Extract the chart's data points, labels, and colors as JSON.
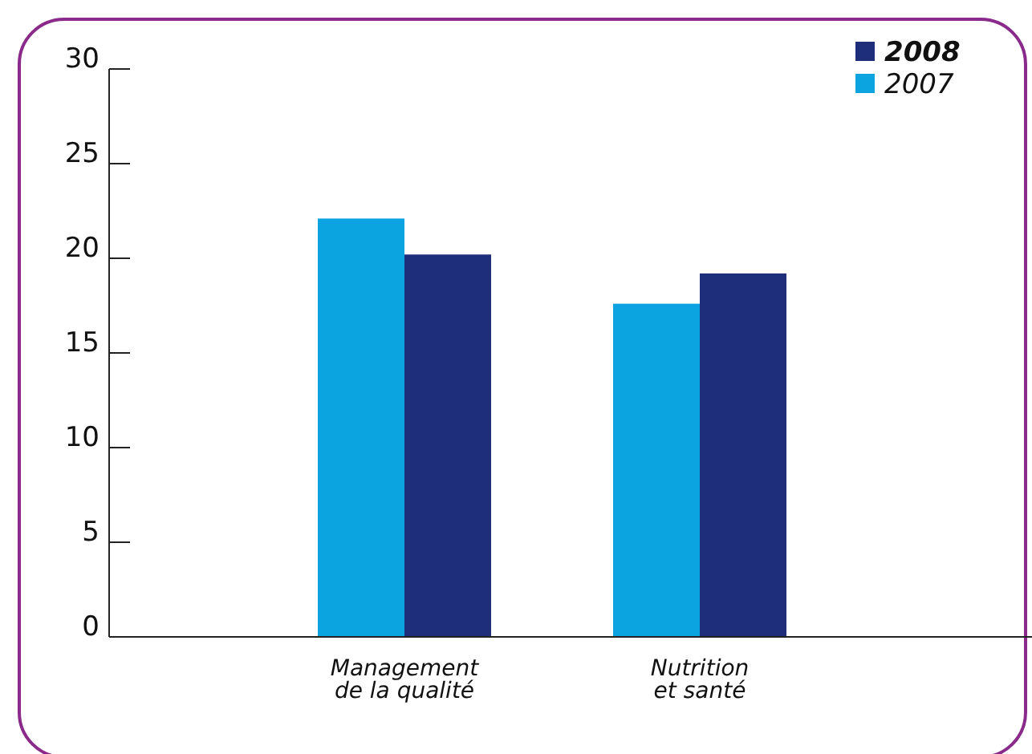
{
  "chart_data": {
    "type": "bar",
    "categories": [
      "Management de la qualité",
      "Nutrition et santé"
    ],
    "series": [
      {
        "name": "2007",
        "color": "#0ba3e0",
        "values": [
          22.1,
          17.6
        ]
      },
      {
        "name": "2008",
        "color": "#1f2e7a",
        "values": [
          20.2,
          19.2
        ]
      }
    ],
    "ylim": [
      0,
      30
    ],
    "yticks": [
      0,
      5,
      10,
      15,
      20,
      25,
      30
    ],
    "grid": false,
    "legend": "top right"
  }
}
